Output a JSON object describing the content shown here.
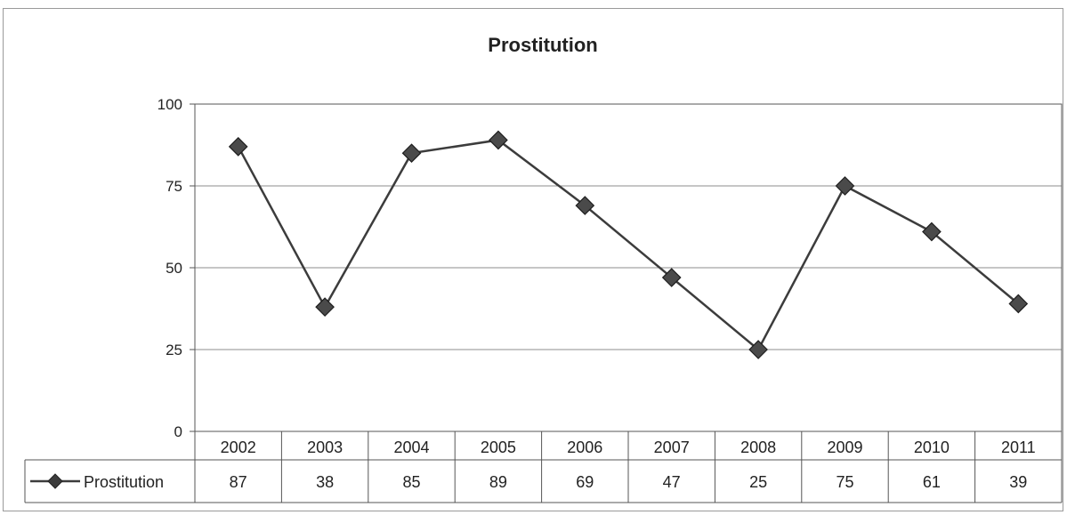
{
  "chart_data": {
    "type": "line",
    "title": "Prostitution",
    "categories": [
      "2002",
      "2003",
      "2004",
      "2005",
      "2006",
      "2007",
      "2008",
      "2009",
      "2010",
      "2011"
    ],
    "series": [
      {
        "name": "Prostitution",
        "values": [
          87,
          38,
          85,
          89,
          69,
          47,
          25,
          75,
          61,
          39
        ],
        "color": "#3c3c3c",
        "marker": "diamond"
      }
    ],
    "ylim": [
      0,
      100
    ],
    "yticks": [
      "0",
      "25",
      "50",
      "75",
      "100"
    ],
    "grid": true,
    "legend": "data-table-left",
    "data_table": true
  }
}
